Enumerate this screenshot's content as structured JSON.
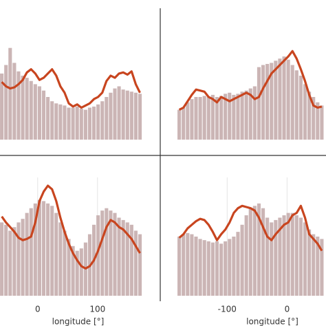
{
  "chart_data": [
    {
      "type": "bar-line",
      "x": [
        -60,
        -53,
        -46,
        -39,
        -32,
        -25,
        -18,
        -11,
        -4,
        3,
        10,
        17,
        24,
        31,
        38,
        45,
        52,
        59,
        66,
        73,
        80,
        87,
        94,
        101,
        108,
        115,
        122,
        129,
        136,
        143,
        150,
        157,
        164,
        171
      ],
      "xlim": [
        -63,
        175
      ],
      "ylim": [
        0,
        100
      ],
      "series": [
        {
          "type": "bar",
          "color": "#cbb5b5",
          "values": [
            62,
            70,
            86,
            72,
            64,
            60,
            58,
            55,
            52,
            50,
            46,
            40,
            36,
            34,
            33,
            32,
            30,
            30,
            31,
            29,
            28,
            30,
            31,
            33,
            36,
            40,
            44,
            48,
            50,
            47,
            46,
            45,
            44,
            43
          ]
        },
        {
          "type": "line",
          "color": "#c8451f",
          "values": [
            54,
            50,
            48,
            49,
            52,
            56,
            63,
            66,
            62,
            56,
            58,
            62,
            66,
            60,
            50,
            44,
            34,
            31,
            33,
            30,
            32,
            34,
            38,
            40,
            44,
            55,
            60,
            58,
            62,
            63,
            61,
            64,
            52,
            44
          ]
        }
      ]
    },
    {
      "type": "bar-line",
      "x": [
        -180,
        -173,
        -166,
        -159,
        -152,
        -145,
        -138,
        -131,
        -124,
        -117,
        -110,
        -103,
        -96,
        -89,
        -82,
        -75,
        -68,
        -61,
        -54,
        -47,
        -40,
        -33,
        -26,
        -19,
        -12,
        -5,
        2,
        9,
        16,
        23,
        30,
        37,
        44,
        51,
        58
      ],
      "xlim": [
        -183,
        65
      ],
      "ylim": [
        0,
        100
      ],
      "series": [
        {
          "type": "bar",
          "color": "#cbb5b5",
          "values": [
            28,
            30,
            35,
            38,
            40,
            40,
            41,
            40,
            42,
            40,
            41,
            43,
            44,
            42,
            43,
            45,
            46,
            48,
            50,
            68,
            70,
            71,
            72,
            74,
            76,
            78,
            75,
            70,
            65,
            60,
            52,
            45,
            40,
            35,
            32
          ]
        },
        {
          "type": "line",
          "color": "#c8451f",
          "values": [
            28,
            30,
            36,
            42,
            47,
            46,
            45,
            40,
            38,
            35,
            40,
            38,
            36,
            38,
            40,
            42,
            44,
            42,
            38,
            40,
            48,
            55,
            62,
            66,
            70,
            74,
            78,
            83,
            76,
            66,
            55,
            42,
            32,
            30,
            31
          ]
        }
      ]
    },
    {
      "type": "bar-line",
      "x": [
        -60,
        -53,
        -46,
        -39,
        -32,
        -25,
        -18,
        -11,
        -4,
        3,
        10,
        17,
        24,
        31,
        38,
        45,
        52,
        59,
        66,
        73,
        80,
        87,
        94,
        101,
        108,
        115,
        122,
        129,
        136,
        143,
        150,
        157,
        164,
        171
      ],
      "xlim": [
        -63,
        175
      ],
      "ylim": [
        0,
        100
      ],
      "xticks": [
        0,
        100
      ],
      "xlabel": "longitude [°]",
      "grid": true,
      "series": [
        {
          "type": "bar",
          "color": "#cbb5b5",
          "values": [
            62,
            60,
            55,
            58,
            62,
            65,
            70,
            74,
            78,
            81,
            80,
            78,
            76,
            70,
            62,
            55,
            48,
            42,
            38,
            40,
            45,
            52,
            60,
            68,
            72,
            74,
            72,
            70,
            66,
            64,
            62,
            60,
            55,
            52
          ]
        },
        {
          "type": "line",
          "color": "#c8451f",
          "values": [
            67,
            62,
            58,
            54,
            49,
            47,
            48,
            50,
            62,
            80,
            88,
            93,
            90,
            80,
            66,
            54,
            44,
            36,
            30,
            25,
            23,
            25,
            30,
            38,
            48,
            58,
            64,
            62,
            58,
            56,
            52,
            48,
            42,
            36
          ]
        }
      ]
    },
    {
      "type": "bar-line",
      "x": [
        -180,
        -173,
        -166,
        -159,
        -152,
        -145,
        -138,
        -131,
        -124,
        -117,
        -110,
        -103,
        -96,
        -89,
        -82,
        -75,
        -68,
        -61,
        -54,
        -47,
        -40,
        -33,
        -26,
        -19,
        -12,
        -5,
        2,
        9,
        16,
        23,
        30,
        37,
        44,
        51,
        58
      ],
      "xlim": [
        -183,
        65
      ],
      "ylim": [
        0,
        100
      ],
      "xticks": [
        -100,
        0
      ],
      "xlabel": "longitude [°]",
      "grid": true,
      "series": [
        {
          "type": "bar",
          "color": "#cbb5b5",
          "values": [
            50,
            52,
            53,
            52,
            50,
            48,
            47,
            46,
            45,
            46,
            44,
            46,
            48,
            50,
            54,
            60,
            68,
            74,
            76,
            78,
            74,
            66,
            62,
            64,
            66,
            68,
            70,
            70,
            68,
            66,
            62,
            56,
            52,
            50,
            48
          ]
        },
        {
          "type": "line",
          "color": "#c8451f",
          "values": [
            49,
            52,
            57,
            60,
            63,
            65,
            64,
            60,
            54,
            47,
            52,
            56,
            62,
            70,
            74,
            76,
            75,
            74,
            72,
            66,
            58,
            50,
            47,
            52,
            56,
            60,
            62,
            68,
            70,
            76,
            66,
            52,
            48,
            44,
            38
          ]
        }
      ]
    }
  ]
}
